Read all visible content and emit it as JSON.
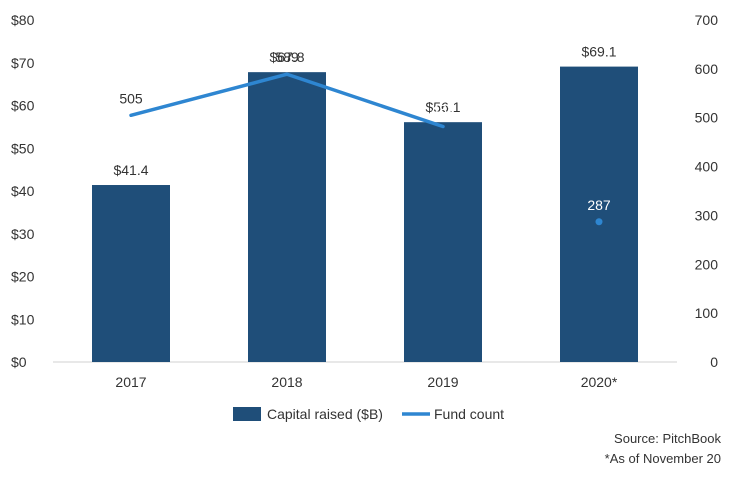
{
  "chart_data": {
    "type": "bar",
    "categories": [
      "2017",
      "2018",
      "2019",
      "2020*"
    ],
    "series": [
      {
        "name": "Capital raised ($B)",
        "kind": "bar",
        "axis": "left",
        "color": "#1f4e79",
        "values": [
          41.4,
          67.8,
          56.1,
          69.1
        ],
        "labels": [
          "$41.4",
          "$67.8",
          "$56.1",
          "$69.1"
        ]
      },
      {
        "name": "Fund count",
        "kind": "line",
        "axis": "right",
        "color": "#2e86d1",
        "values": [
          505,
          589,
          482,
          287
        ],
        "labels": [
          "505",
          "589",
          "482",
          "287"
        ],
        "line_segments": [
          [
            0,
            1,
            2
          ]
        ],
        "isolated_points": [
          3
        ]
      }
    ],
    "y_left": {
      "min": 0,
      "max": 80,
      "ticks": [
        0,
        10,
        20,
        30,
        40,
        50,
        60,
        70,
        80
      ],
      "tick_labels": [
        "$0",
        "$10",
        "$20",
        "$30",
        "$40",
        "$50",
        "$60",
        "$70",
        "$80"
      ]
    },
    "y_right": {
      "min": 0,
      "max": 700,
      "ticks": [
        0,
        100,
        200,
        300,
        400,
        500,
        600,
        700
      ],
      "tick_labels": [
        "0",
        "100",
        "200",
        "300",
        "400",
        "500",
        "600",
        "700"
      ]
    },
    "grid": false,
    "legend": {
      "position": "bottom",
      "entries": [
        "Capital raised ($B)",
        "Fund count"
      ]
    }
  },
  "footer": {
    "source": "Source: PitchBook",
    "note": "*As of November 20"
  }
}
